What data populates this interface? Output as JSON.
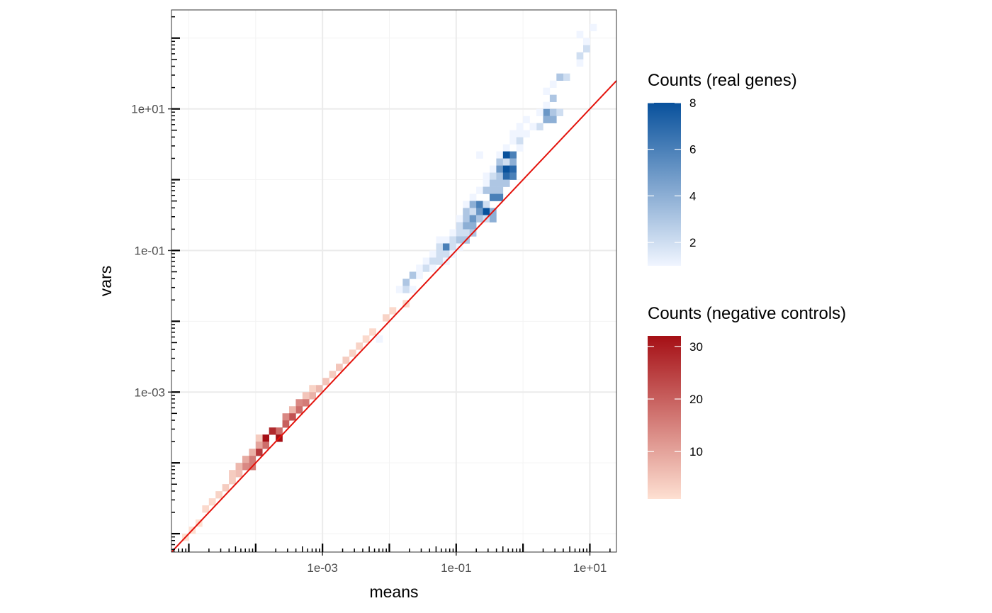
{
  "chart_data": {
    "type": "heatmap",
    "title": "",
    "xlabel": "means",
    "ylabel": "vars",
    "x_scale": "log10",
    "y_scale": "log10",
    "xlim": [
      5.5e-06,
      25
    ],
    "ylim": [
      5.5e-06,
      250
    ],
    "x_ticks": [
      {
        "value": 0.001,
        "label": "1e-03"
      },
      {
        "value": 0.1,
        "label": "1e-01"
      },
      {
        "value": 10,
        "label": "1e+01"
      }
    ],
    "y_ticks": [
      {
        "value": 0.001,
        "label": "1e-03"
      },
      {
        "value": 0.1,
        "label": "1e-01"
      },
      {
        "value": 10,
        "label": "1e+01"
      }
    ],
    "grid": true,
    "reference_line": {
      "description": "identity line vars = means",
      "color": "#e3120b"
    },
    "bin_width_log10": 0.1,
    "series": [
      {
        "name": "Counts (real genes)",
        "legend_title": "Counts (real genes)",
        "color_low": "#f0f5ff",
        "color_high": "#08519c",
        "range": [
          1,
          8
        ],
        "legend_ticks": [
          2,
          4,
          6,
          8
        ],
        "bins": [
          [
            1.05,
            2.15,
            1
          ],
          [
            0.85,
            2.05,
            1
          ],
          [
            0.95,
            1.95,
            1
          ],
          [
            0.95,
            1.85,
            2
          ],
          [
            0.85,
            1.75,
            2
          ],
          [
            0.85,
            1.65,
            1
          ],
          [
            0.65,
            1.45,
            2
          ],
          [
            0.55,
            1.45,
            3
          ],
          [
            0.35,
            1.25,
            1
          ],
          [
            0.45,
            1.35,
            1
          ],
          [
            0.45,
            1.15,
            3
          ],
          [
            0.35,
            1.05,
            1
          ],
          [
            0.35,
            0.95,
            5
          ],
          [
            0.45,
            0.95,
            3
          ],
          [
            0.25,
            0.95,
            1
          ],
          [
            0.55,
            0.95,
            2
          ],
          [
            0.45,
            0.85,
            4
          ],
          [
            0.35,
            0.85,
            4
          ],
          [
            0.25,
            0.75,
            2
          ],
          [
            0.15,
            0.75,
            1
          ],
          [
            0.05,
            0.85,
            1
          ],
          [
            -0.05,
            0.75,
            1
          ],
          [
            0.05,
            0.65,
            1
          ],
          [
            -0.05,
            0.65,
            1
          ],
          [
            -0.15,
            0.65,
            1
          ],
          [
            -0.15,
            0.55,
            1
          ],
          [
            -0.05,
            0.55,
            2
          ],
          [
            -0.25,
            0.45,
            1
          ],
          [
            -0.05,
            0.45,
            1
          ],
          [
            -0.35,
            0.35,
            1
          ],
          [
            -0.65,
            0.35,
            1
          ],
          [
            -0.15,
            0.35,
            6
          ],
          [
            -0.25,
            0.35,
            8
          ],
          [
            -0.35,
            0.25,
            3
          ],
          [
            -0.25,
            0.25,
            2
          ],
          [
            -0.15,
            0.25,
            4
          ],
          [
            -0.45,
            0.15,
            1
          ],
          [
            -0.35,
            0.15,
            5
          ],
          [
            -0.25,
            0.15,
            8
          ],
          [
            -0.15,
            0.15,
            7
          ],
          [
            -0.55,
            0.05,
            1
          ],
          [
            -0.45,
            0.05,
            2
          ],
          [
            -0.35,
            0.05,
            3
          ],
          [
            -0.25,
            0.05,
            7
          ],
          [
            -0.15,
            0.05,
            6
          ],
          [
            -0.55,
            -0.05,
            1
          ],
          [
            -0.45,
            -0.05,
            3
          ],
          [
            -0.35,
            -0.05,
            3
          ],
          [
            -0.25,
            -0.05,
            3
          ],
          [
            -0.65,
            -0.15,
            1
          ],
          [
            -0.55,
            -0.15,
            3
          ],
          [
            -0.45,
            -0.15,
            3
          ],
          [
            -0.35,
            -0.15,
            3
          ],
          [
            -0.45,
            -0.25,
            6
          ],
          [
            -0.35,
            -0.25,
            6
          ],
          [
            -0.75,
            -0.25,
            1
          ],
          [
            -0.85,
            -0.35,
            1
          ],
          [
            -0.75,
            -0.35,
            4
          ],
          [
            -0.65,
            -0.35,
            6
          ],
          [
            -0.55,
            -0.35,
            2
          ],
          [
            -0.85,
            -0.45,
            3
          ],
          [
            -0.75,
            -0.45,
            2
          ],
          [
            -0.65,
            -0.45,
            5
          ],
          [
            -0.55,
            -0.45,
            8
          ],
          [
            -0.45,
            -0.45,
            4
          ],
          [
            -0.95,
            -0.55,
            1
          ],
          [
            -0.85,
            -0.55,
            3
          ],
          [
            -0.75,
            -0.55,
            5
          ],
          [
            -0.65,
            -0.55,
            3
          ],
          [
            -0.55,
            -0.55,
            2
          ],
          [
            -0.45,
            -0.55,
            4
          ],
          [
            -0.95,
            -0.65,
            2
          ],
          [
            -0.85,
            -0.65,
            4
          ],
          [
            -0.75,
            -0.65,
            4
          ],
          [
            -1.05,
            -0.75,
            1
          ],
          [
            -0.95,
            -0.75,
            2
          ],
          [
            -0.85,
            -0.75,
            2
          ],
          [
            -0.75,
            -0.75,
            3
          ],
          [
            -1.25,
            -0.85,
            1
          ],
          [
            -1.15,
            -0.85,
            1
          ],
          [
            -1.05,
            -0.85,
            2
          ],
          [
            -0.95,
            -0.85,
            3
          ],
          [
            -0.85,
            -0.85,
            3
          ],
          [
            -1.25,
            -0.95,
            2
          ],
          [
            -1.15,
            -0.95,
            6
          ],
          [
            -1.05,
            -0.95,
            2
          ],
          [
            -0.95,
            -0.95,
            1
          ],
          [
            -1.35,
            -1.05,
            1
          ],
          [
            -1.25,
            -1.05,
            2
          ],
          [
            -1.15,
            -1.05,
            2
          ],
          [
            -1.05,
            -1.05,
            1
          ],
          [
            -1.45,
            -1.15,
            1
          ],
          [
            -1.35,
            -1.15,
            2
          ],
          [
            -1.25,
            -1.15,
            2
          ],
          [
            -1.15,
            -1.15,
            1
          ],
          [
            -1.55,
            -1.25,
            1
          ],
          [
            -1.45,
            -1.25,
            2
          ],
          [
            -1.35,
            -1.25,
            1
          ],
          [
            -1.75,
            -1.45,
            3
          ],
          [
            -1.65,
            -1.35,
            3
          ],
          [
            -1.55,
            -1.35,
            1
          ],
          [
            -1.85,
            -1.55,
            1
          ],
          [
            -1.75,
            -1.55,
            2
          ],
          [
            -1.65,
            -1.55,
            1
          ],
          [
            -2.15,
            -2.25,
            1
          ]
        ]
      },
      {
        "name": "Counts (negative controls)",
        "legend_title": "Counts (negative controls)",
        "color_low": "#fee0d2",
        "color_high": "#a50f15",
        "range": [
          1,
          32
        ],
        "legend_ticks": [
          10,
          20,
          30
        ],
        "bins": [
          [
            -1.75,
            -1.75,
            2
          ],
          [
            -1.95,
            -1.85,
            2
          ],
          [
            -2.05,
            -1.95,
            3
          ],
          [
            -2.25,
            -2.15,
            2
          ],
          [
            -2.35,
            -2.25,
            2
          ],
          [
            -2.45,
            -2.35,
            3
          ],
          [
            -2.55,
            -2.45,
            3
          ],
          [
            -2.65,
            -2.55,
            4
          ],
          [
            -2.75,
            -2.65,
            5
          ],
          [
            -2.85,
            -2.75,
            4
          ],
          [
            -2.95,
            -2.85,
            5
          ],
          [
            -3.05,
            -2.95,
            7
          ],
          [
            -3.15,
            -2.95,
            3
          ],
          [
            -3.15,
            -3.05,
            8
          ],
          [
            -3.25,
            -3.05,
            5
          ],
          [
            -3.25,
            -3.15,
            16
          ],
          [
            -3.35,
            -3.15,
            14
          ],
          [
            -3.35,
            -3.25,
            18
          ],
          [
            -3.45,
            -3.25,
            7
          ],
          [
            -3.45,
            -3.35,
            22
          ],
          [
            -3.55,
            -3.35,
            14
          ],
          [
            -3.55,
            -3.45,
            20
          ],
          [
            -3.65,
            -3.55,
            18
          ],
          [
            -3.75,
            -3.55,
            28
          ],
          [
            -3.65,
            -3.65,
            32
          ],
          [
            -3.85,
            -3.65,
            32
          ],
          [
            -3.85,
            -3.75,
            18
          ],
          [
            -3.95,
            -3.65,
            4
          ],
          [
            -3.95,
            -3.75,
            10
          ],
          [
            -3.95,
            -3.85,
            26
          ],
          [
            -4.05,
            -3.85,
            8
          ],
          [
            -4.05,
            -3.95,
            16
          ],
          [
            -4.05,
            -4.05,
            16
          ],
          [
            -4.15,
            -3.95,
            9
          ],
          [
            -4.15,
            -4.05,
            14
          ],
          [
            -4.25,
            -4.05,
            7
          ],
          [
            -4.25,
            -4.15,
            6
          ],
          [
            -4.35,
            -4.15,
            4
          ],
          [
            -4.35,
            -4.25,
            4
          ],
          [
            -4.45,
            -4.35,
            4
          ],
          [
            -4.55,
            -4.45,
            3
          ],
          [
            -4.65,
            -4.55,
            2
          ],
          [
            -4.75,
            -4.65,
            2
          ],
          [
            -4.85,
            -4.85,
            1
          ],
          [
            -4.95,
            -4.95,
            1
          ],
          [
            -5.05,
            -5.05,
            1
          ]
        ]
      }
    ]
  }
}
